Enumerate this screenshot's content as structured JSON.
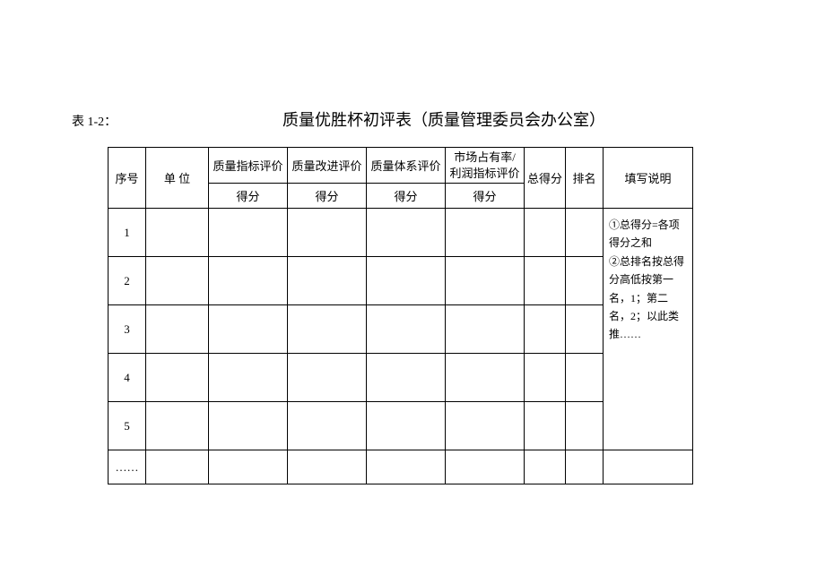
{
  "label": "表 1-2：",
  "title": "质量优胜杯初评表（质量管理委员会办公室）",
  "cols": {
    "seq": "序号",
    "unit": "单  位",
    "c1": "质量指标评价",
    "c2": "质量改进评价",
    "c3": "质量体系评价",
    "c4_a": "市场占有率/",
    "c4_b": "利润指标评价",
    "score": "得分",
    "total": "总得分",
    "rank": "排名",
    "desc": "填写说明"
  },
  "rows": [
    "1",
    "2",
    "3",
    "4",
    "5",
    "……"
  ],
  "desc_text": "①总得分=各项得分之和\n②总排名按总得分高低按第一名，1；第二名，2；以此类推……"
}
